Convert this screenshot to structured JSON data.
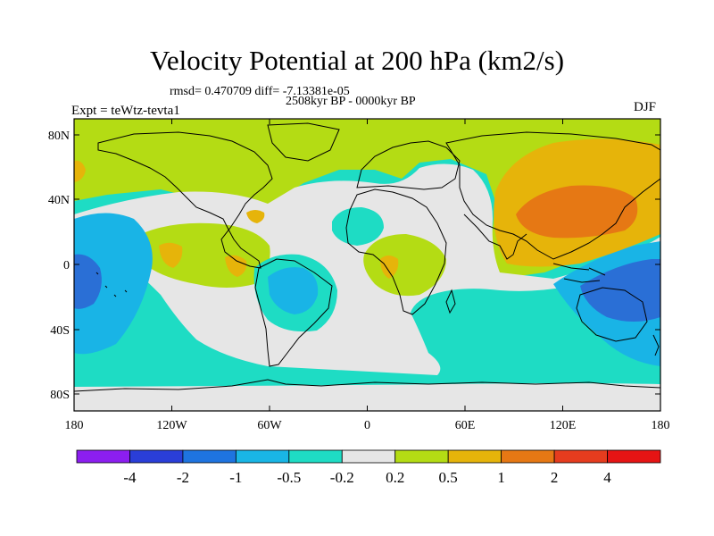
{
  "title": "Velocity Potential at 200 hPa (km2/s)",
  "stats_line": "rmsd= 0.470709 diff= -7.13381e-05",
  "period_line": "2508kyr BP - 0000kyr BP",
  "experiment_label": "Expt = teWtz-tevta1",
  "season_label": "DJF",
  "map": {
    "projection": "cylindrical-equidistant",
    "lon_range": [
      -180,
      180
    ],
    "lat_range": [
      -90,
      90
    ],
    "x_tick_labels": [
      "180",
      "120W",
      "60W",
      "0",
      "60E",
      "120E",
      "180"
    ],
    "y_tick_labels": [
      "80N",
      "40N",
      "0",
      "40S",
      "80S"
    ]
  },
  "colorbar": {
    "labels": [
      "-4",
      "-2",
      "-1",
      "-0.5",
      "-0.2",
      "0.2",
      "0.5",
      "1",
      "2",
      "4"
    ],
    "colors": [
      "#8c1ef0",
      "#2a3ed8",
      "#1e74e0",
      "#19b6e6",
      "#1edcc4",
      "#e6e6e6",
      "#b4dc14",
      "#e6b40a",
      "#e67814",
      "#e63c1e",
      "#e61414"
    ]
  },
  "colors": {
    "neg_strong": "#2a6fd6",
    "neg_mid": "#19b4e6",
    "neg_weak": "#1edcc4",
    "neutral": "#e6e6e6",
    "pos_weak": "#b4dc14",
    "pos_mid": "#e6b40a",
    "pos_strong": "#e67814"
  }
}
